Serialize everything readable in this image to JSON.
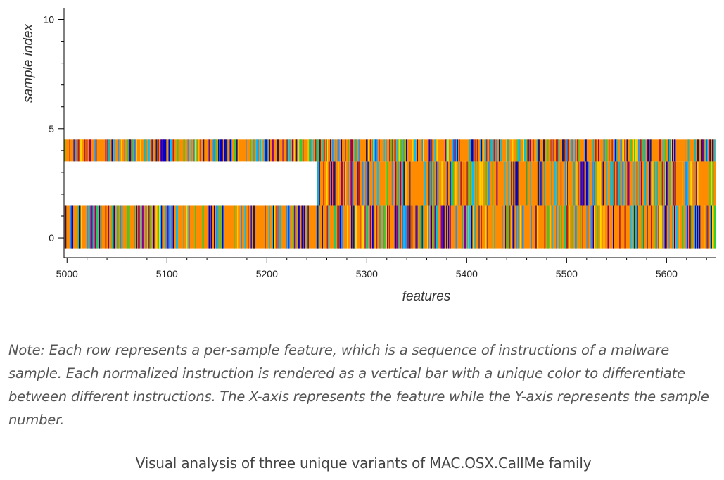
{
  "chart_data": {
    "type": "heatmap",
    "xlabel": "features",
    "ylabel": "sample index",
    "xlim": [
      4997,
      5649
    ],
    "ylim": [
      -0.9,
      10.5
    ],
    "x_ticks": [
      5000,
      5100,
      5200,
      5300,
      5400,
      5500,
      5600
    ],
    "y_ticks": [
      0,
      5,
      10
    ],
    "rows": [
      {
        "sample": 0,
        "y_range": [
          -0.5,
          1.5
        ],
        "x_range": [
          4997,
          5649
        ]
      },
      {
        "sample": 2,
        "y_range": [
          1.5,
          3.5
        ],
        "x_range": [
          5250,
          5649
        ]
      },
      {
        "sample": 3,
        "y_range": [
          3.5,
          4.5
        ],
        "x_range": [
          4997,
          5649
        ]
      }
    ],
    "palette": [
      "#ff8c00",
      "#0000cd",
      "#1e90ff",
      "#00bfff",
      "#b22222",
      "#32cd32",
      "#8b008b",
      "#ffd700",
      "#20b2aa",
      "#191970"
    ],
    "dominant_color": "#ff8c00"
  },
  "note": "Note: Each row represents a per-sample feature, which is a sequence of instructions of a malware sample. Each normalized instruction is rendered as a vertical bar with a unique color to differentiate between different instructions. The X-axis represents the feature while the Y-axis represents the sample number.",
  "caption": "Visual analysis of three unique variants of MAC.OSX.CallMe family"
}
